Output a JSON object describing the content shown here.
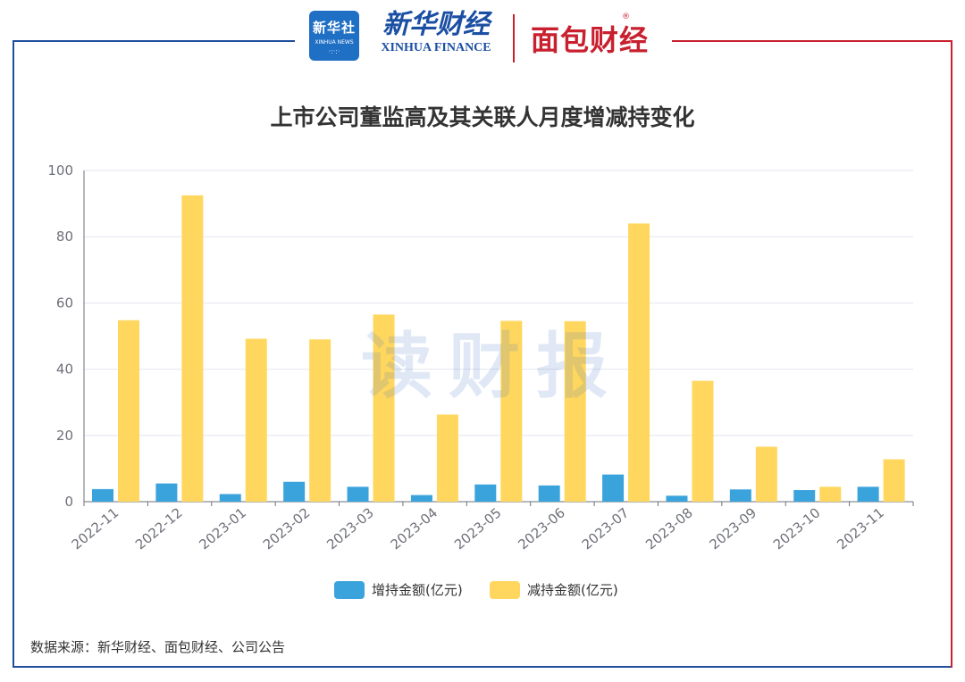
{
  "header": {
    "logo_xinhua_news": "新华社",
    "logo_xinhua_news_sub": "XINHUA NEWS",
    "logo_xinhua_finance_cn": "新华财经",
    "logo_xinhua_finance_en": "XINHUA FINANCE",
    "logo_mianbao": "面包财经",
    "registered_mark": "®"
  },
  "watermark": "读财报",
  "source": "数据来源：新华财经、面包财经、公司公告",
  "colors": {
    "increase": "#3ba3dc",
    "decrease": "#ffd75f",
    "grid": "#e3e6f0",
    "axis": "#6e7079",
    "text": "#333333",
    "frame_blue": "#1e4e9c",
    "frame_red": "#c8202f"
  },
  "chart_data": {
    "type": "bar",
    "title": "上市公司董监高及其关联人月度增减持变化",
    "xlabel": "",
    "ylabel": "",
    "ylim": [
      0,
      100
    ],
    "yticks": [
      0,
      20,
      40,
      60,
      80,
      100
    ],
    "grid": true,
    "legend_position": "bottom-center",
    "categories": [
      "2022-11",
      "2022-12",
      "2023-01",
      "2023-02",
      "2023-03",
      "2023-04",
      "2023-05",
      "2023-06",
      "2023-07",
      "2023-08",
      "2023-09",
      "2023-10",
      "2023-11"
    ],
    "series": [
      {
        "name": "增持金额(亿元)",
        "values": [
          3.8,
          5.5,
          2.3,
          6.0,
          4.5,
          2.0,
          5.2,
          4.9,
          8.2,
          1.8,
          3.7,
          3.5,
          4.5
        ]
      },
      {
        "name": "减持金额(亿元)",
        "values": [
          54.8,
          92.5,
          49.2,
          49.0,
          56.5,
          26.3,
          54.6,
          54.5,
          84.0,
          36.5,
          16.6,
          4.5,
          12.8
        ]
      }
    ]
  }
}
